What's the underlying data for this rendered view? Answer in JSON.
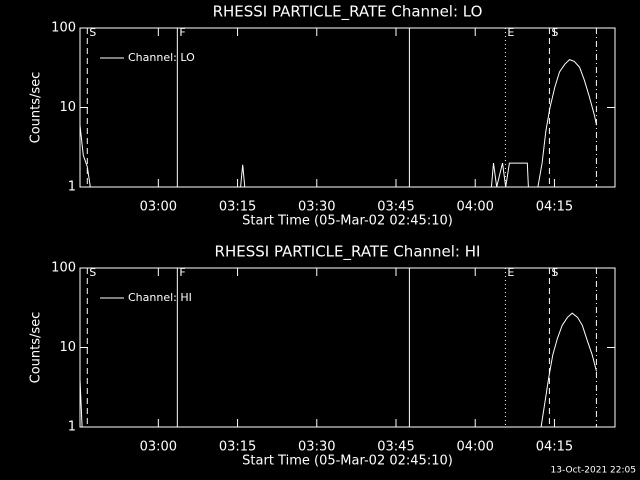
{
  "chart_data": [
    {
      "type": "line",
      "title": "RHESSI PARTICLE_RATE Channel: LO",
      "xlabel": "Start Time (05-Mar-02 02:45:10)",
      "ylabel": "Counts/sec",
      "xlim": [
        0,
        101.3
      ],
      "xticks": [
        {
          "value": 14.833,
          "label": "03:00"
        },
        {
          "value": 29.833,
          "label": "03:15"
        },
        {
          "value": 44.833,
          "label": "03:30"
        },
        {
          "value": 59.833,
          "label": "03:45"
        },
        {
          "value": 74.833,
          "label": "04:00"
        },
        {
          "value": 89.833,
          "label": "04:15"
        }
      ],
      "ylim": [
        1,
        100
      ],
      "yticks": [
        1,
        10,
        100
      ],
      "log_y": true,
      "legend": "upper-left",
      "markers": [
        {
          "x": 1.38,
          "label": "S",
          "style": "dashed"
        },
        {
          "x": 18.43,
          "label": "F",
          "style": "solid"
        },
        {
          "x": 62.37,
          "style": "solid"
        },
        {
          "x": 80.55,
          "label": "E",
          "style": "dotted"
        },
        {
          "x": 88.88,
          "label": "S",
          "style": "dashed"
        },
        {
          "x": 97.78,
          "style": "dashdot"
        }
      ],
      "series": [
        {
          "name": "Channel: LO",
          "color": "#ffffff",
          "x": [
            0,
            0.63,
            1.38,
            1.95,
            30.4,
            30.8,
            31.2,
            77.9,
            78.3,
            78.9,
            80.0,
            80.6,
            81.3,
            84.7,
            84.9,
            86.7,
            87.5,
            88.2,
            89.0,
            89.9,
            90.8,
            91.8,
            92.7,
            93.6,
            94.6,
            95.5,
            96.4,
            97.4,
            97.8
          ],
          "values": [
            6,
            2.5,
            1.8,
            1,
            1,
            1.9,
            1,
            1,
            2,
            1,
            2,
            1,
            2,
            2,
            1,
            1,
            2,
            5,
            10,
            18,
            28,
            35,
            40,
            38,
            32,
            22,
            14,
            8,
            6
          ]
        }
      ]
    },
    {
      "type": "line",
      "title": "RHESSI PARTICLE_RATE Channel: HI",
      "xlabel": "Start Time (05-Mar-02 02:45:10)",
      "ylabel": "Counts/sec",
      "xlim": [
        0,
        101.3
      ],
      "xticks": [
        {
          "value": 14.833,
          "label": "03:00"
        },
        {
          "value": 29.833,
          "label": "03:15"
        },
        {
          "value": 44.833,
          "label": "03:30"
        },
        {
          "value": 59.833,
          "label": "03:45"
        },
        {
          "value": 74.833,
          "label": "04:00"
        },
        {
          "value": 89.833,
          "label": "04:15"
        }
      ],
      "ylim": [
        1,
        100
      ],
      "yticks": [
        1,
        10,
        100
      ],
      "log_y": true,
      "legend": "upper-left",
      "markers": [
        {
          "x": 1.38,
          "label": "S",
          "style": "dashed"
        },
        {
          "x": 18.43,
          "label": "F",
          "style": "solid"
        },
        {
          "x": 62.37,
          "style": "solid"
        },
        {
          "x": 80.55,
          "label": "E",
          "style": "dotted"
        },
        {
          "x": 88.88,
          "label": "S",
          "style": "dashed"
        },
        {
          "x": 97.78,
          "style": "dashdot"
        }
      ],
      "series": [
        {
          "name": "Channel: HI",
          "color": "#ffffff",
          "x": [
            0,
            0.4,
            87.3,
            88.0,
            88.7,
            89.5,
            90.4,
            91.3,
            92.3,
            93.2,
            94.2,
            95.1,
            96.1,
            97.0,
            97.8
          ],
          "values": [
            4,
            1,
            1,
            2,
            4,
            8,
            13,
            19,
            24,
            27,
            24,
            19,
            12,
            8,
            5
          ]
        }
      ]
    }
  ],
  "footer": "13-Oct-2021 22:05"
}
